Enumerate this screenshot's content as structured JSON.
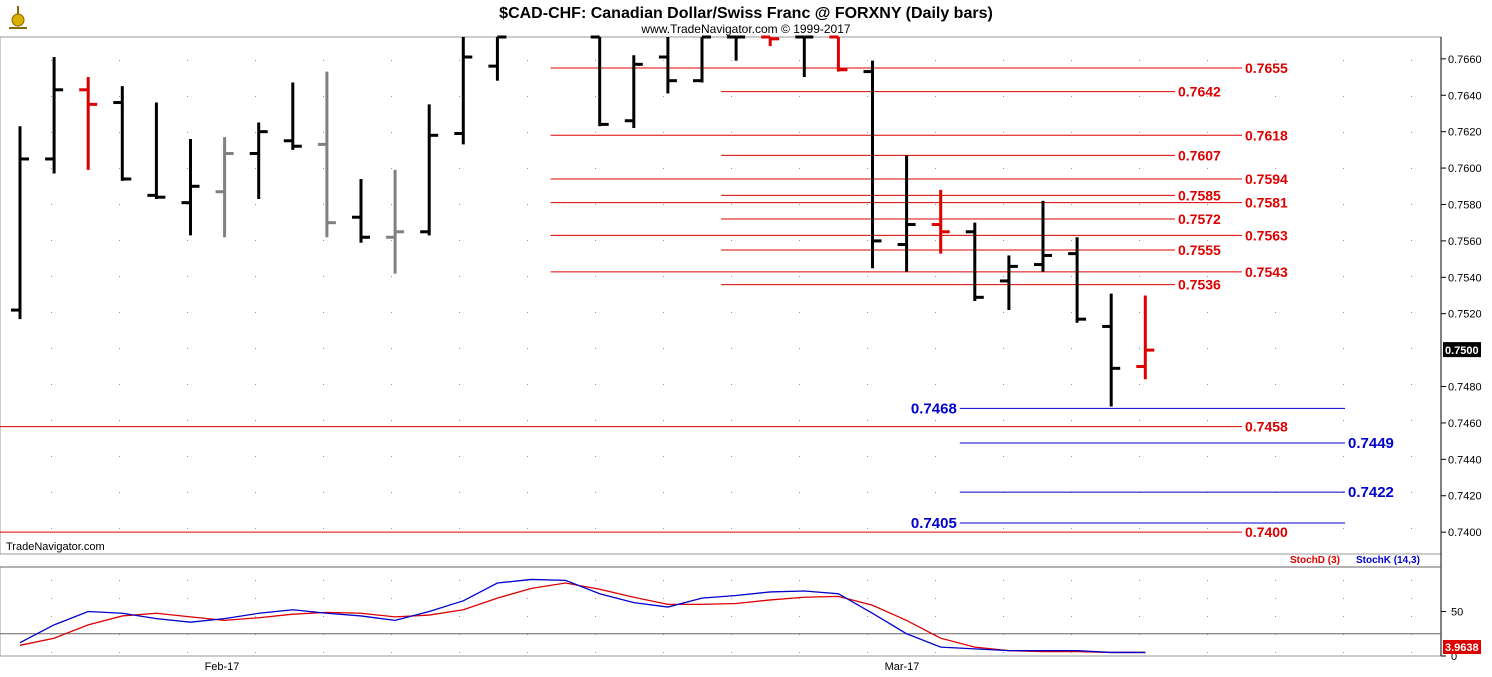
{
  "header": {
    "title": "$CAD-CHF:  Canadian Dollar/Swiss Franc @ FORXNY  (Daily bars)",
    "subtitle": "www.TradeNavigator.com © 1999-2017",
    "watermark": "TradeNavigator.com"
  },
  "chart_data": [
    {
      "type": "ohlc",
      "ylim": [
        0.7388,
        0.7672
      ],
      "yticks": [
        "0.7660",
        "0.7640",
        "0.7620",
        "0.7600",
        "0.7580",
        "0.7560",
        "0.7540",
        "0.7520",
        "0.7480",
        "0.7460",
        "0.7440",
        "0.7420",
        "0.7400"
      ],
      "last_price": "0.7500",
      "xlabels": [
        "Feb-17",
        "Mar-17"
      ],
      "colors": {
        "up": "#000000",
        "red": "#dd0000",
        "gray": "#808080",
        "red_level": "#dd0000",
        "blue_level": "#0000cc"
      },
      "bars": [
        {
          "o": 0.7522,
          "h": 0.7623,
          "l": 0.7517,
          "c": 0.7605,
          "color": "black"
        },
        {
          "o": 0.7605,
          "h": 0.7661,
          "l": 0.7597,
          "c": 0.7643,
          "color": "black"
        },
        {
          "o": 0.7643,
          "h": 0.765,
          "l": 0.7599,
          "c": 0.7635,
          "color": "red"
        },
        {
          "o": 0.7636,
          "h": 0.7645,
          "l": 0.7593,
          "c": 0.7594,
          "color": "black"
        },
        {
          "o": 0.7585,
          "h": 0.7636,
          "l": 0.7583,
          "c": 0.7584,
          "color": "black"
        },
        {
          "o": 0.7581,
          "h": 0.7616,
          "l": 0.7563,
          "c": 0.759,
          "color": "black"
        },
        {
          "o": 0.7587,
          "h": 0.7617,
          "l": 0.7562,
          "c": 0.7608,
          "color": "gray"
        },
        {
          "o": 0.7608,
          "h": 0.7625,
          "l": 0.7583,
          "c": 0.762,
          "color": "black"
        },
        {
          "o": 0.7615,
          "h": 0.7647,
          "l": 0.761,
          "c": 0.7612,
          "color": "black"
        },
        {
          "o": 0.7613,
          "h": 0.7653,
          "l": 0.7562,
          "c": 0.757,
          "color": "gray"
        },
        {
          "o": 0.7573,
          "h": 0.7594,
          "l": 0.7559,
          "c": 0.7562,
          "color": "black"
        },
        {
          "o": 0.7562,
          "h": 0.7599,
          "l": 0.7542,
          "c": 0.7565,
          "color": "gray"
        },
        {
          "o": 0.7565,
          "h": 0.7635,
          "l": 0.7563,
          "c": 0.7618,
          "color": "black"
        },
        {
          "o": 0.7619,
          "h": 0.7672,
          "l": 0.7613,
          "c": 0.7661,
          "color": "black"
        },
        {
          "o": 0.7656,
          "h": 0.7672,
          "l": 0.7648,
          "c": 0.7672,
          "color": "black"
        },
        null,
        null,
        {
          "o": 0.7672,
          "h": 0.7672,
          "l": 0.7623,
          "c": 0.7624,
          "color": "black"
        },
        {
          "o": 0.7626,
          "h": 0.7662,
          "l": 0.7622,
          "c": 0.7657,
          "color": "black"
        },
        {
          "o": 0.7661,
          "h": 0.7672,
          "l": 0.7641,
          "c": 0.7648,
          "color": "black"
        },
        {
          "o": 0.7648,
          "h": 0.7672,
          "l": 0.7647,
          "c": 0.7672,
          "color": "black"
        },
        {
          "o": 0.7672,
          "h": 0.7672,
          "l": 0.7659,
          "c": 0.7672,
          "color": "black"
        },
        {
          "o": 0.7672,
          "h": 0.7672,
          "l": 0.7667,
          "c": 0.7671,
          "color": "red"
        },
        {
          "o": 0.7672,
          "h": 0.7672,
          "l": 0.765,
          "c": 0.7672,
          "color": "black"
        },
        {
          "o": 0.7672,
          "h": 0.7672,
          "l": 0.7653,
          "c": 0.7654,
          "color": "red"
        },
        {
          "o": 0.7653,
          "h": 0.7659,
          "l": 0.7545,
          "c": 0.756,
          "color": "black"
        },
        {
          "o": 0.7558,
          "h": 0.7607,
          "l": 0.7543,
          "c": 0.7569,
          "color": "black"
        },
        {
          "o": 0.7569,
          "h": 0.7588,
          "l": 0.7553,
          "c": 0.7565,
          "color": "red"
        },
        {
          "o": 0.7565,
          "h": 0.757,
          "l": 0.7527,
          "c": 0.7529,
          "color": "black"
        },
        {
          "o": 0.7538,
          "h": 0.7552,
          "l": 0.7522,
          "c": 0.7546,
          "color": "black"
        },
        {
          "o": 0.7547,
          "h": 0.7582,
          "l": 0.7543,
          "c": 0.7552,
          "color": "black"
        },
        {
          "o": 0.7553,
          "h": 0.7562,
          "l": 0.7515,
          "c": 0.7517,
          "color": "black"
        },
        {
          "o": 0.7513,
          "h": 0.7531,
          "l": 0.7469,
          "c": 0.749,
          "color": "black"
        },
        {
          "o": 0.7491,
          "h": 0.753,
          "l": 0.7484,
          "c": 0.75,
          "color": "red"
        }
      ],
      "levels": [
        {
          "label": "0.7655",
          "value": 0.7655,
          "color": "red",
          "from": 16,
          "label_side": "right"
        },
        {
          "label": "0.7642",
          "value": 0.7642,
          "color": "red",
          "from": 21,
          "label_side": "right"
        },
        {
          "label": "0.7618",
          "value": 0.7618,
          "color": "red",
          "from": 16,
          "label_side": "right"
        },
        {
          "label": "0.7607",
          "value": 0.7607,
          "color": "red",
          "from": 21,
          "label_side": "right"
        },
        {
          "label": "0.7594",
          "value": 0.7594,
          "color": "red",
          "from": 16,
          "label_side": "right"
        },
        {
          "label": "0.7585",
          "value": 0.7585,
          "color": "red",
          "from": 21,
          "label_side": "right"
        },
        {
          "label": "0.7581",
          "value": 0.7581,
          "color": "red",
          "from": 16,
          "label_side": "right"
        },
        {
          "label": "0.7572",
          "value": 0.7572,
          "color": "red",
          "from": 21,
          "label_side": "right"
        },
        {
          "label": "0.7563",
          "value": 0.7563,
          "color": "red",
          "from": 16,
          "label_side": "right"
        },
        {
          "label": "0.7555",
          "value": 0.7555,
          "color": "red",
          "from": 21,
          "label_side": "right"
        },
        {
          "label": "0.7543",
          "value": 0.7543,
          "color": "red",
          "from": 16,
          "label_side": "right"
        },
        {
          "label": "0.7536",
          "value": 0.7536,
          "color": "red",
          "from": 21,
          "label_side": "right"
        },
        {
          "label": "0.7458",
          "value": 0.7458,
          "color": "red",
          "from": -1,
          "label_side": "right"
        },
        {
          "label": "0.7400",
          "value": 0.74,
          "color": "red",
          "from": -1,
          "label_side": "right"
        },
        {
          "label": "0.7468",
          "value": 0.7468,
          "color": "blue",
          "from": 28,
          "label_side": "left"
        },
        {
          "label": "0.7449",
          "value": 0.7449,
          "color": "blue",
          "from": 28,
          "label_side": "right"
        },
        {
          "label": "0.7422",
          "value": 0.7422,
          "color": "blue",
          "from": 28,
          "label_side": "right"
        },
        {
          "label": "0.7405",
          "value": 0.7405,
          "color": "blue",
          "from": 28,
          "label_side": "left"
        }
      ]
    },
    {
      "type": "line",
      "ylim": [
        0,
        100
      ],
      "yticks": [
        "50",
        "0"
      ],
      "legend": [
        "StochD (3)",
        "StochK (14,3)"
      ],
      "last_value": "3.9638",
      "series": [
        {
          "name": "StochD (3)",
          "color": "#dd0000",
          "values": [
            12,
            20,
            35,
            45,
            48,
            44,
            40,
            43,
            47,
            49,
            48,
            44,
            46,
            52,
            65,
            76,
            82,
            75,
            66,
            58,
            58,
            59,
            63,
            66,
            67,
            57,
            40,
            20,
            10,
            6,
            5,
            5,
            4,
            4
          ]
        },
        {
          "name": "StochK (14,3)",
          "color": "#0000cc",
          "values": [
            15,
            35,
            50,
            48,
            42,
            38,
            42,
            48,
            52,
            48,
            45,
            40,
            50,
            62,
            82,
            86,
            85,
            70,
            60,
            55,
            65,
            68,
            72,
            73,
            70,
            48,
            25,
            10,
            8,
            6,
            6,
            6,
            4,
            4
          ]
        }
      ]
    }
  ]
}
